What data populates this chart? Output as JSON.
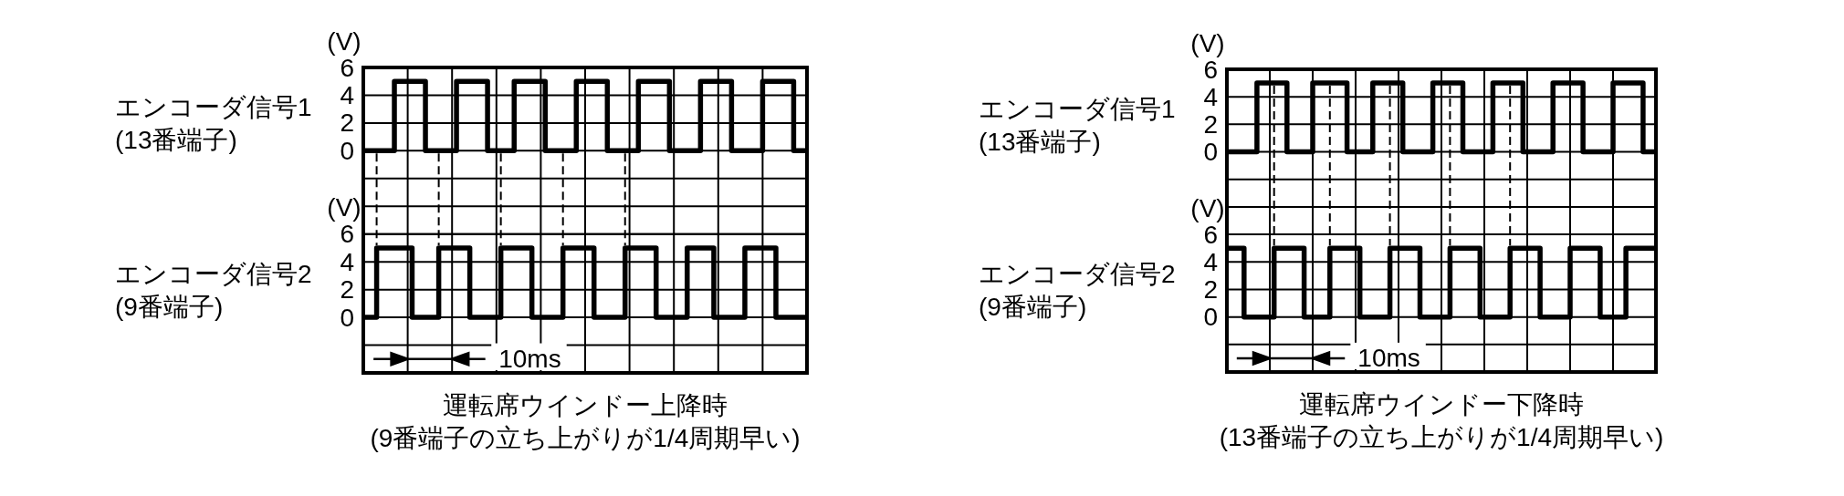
{
  "chart_data": [
    {
      "type": "step",
      "categories": [
        null,
        null,
        null,
        null,
        null,
        null,
        null,
        null,
        null,
        null,
        null,
        null,
        null,
        null,
        null,
        null,
        null,
        null,
        null,
        null,
        null,
        null,
        null,
        null,
        null,
        null,
        null,
        null,
        null,
        null,
        null,
        null,
        null,
        null,
        null,
        null,
        null,
        null,
        null,
        null,
        null,
        null,
        null,
        null,
        null,
        null,
        null,
        null,
        null,
        null,
        null,
        null,
        null,
        null,
        null,
        null,
        null,
        null,
        null,
        null,
        null,
        null,
        null,
        null,
        null,
        null,
        null,
        null,
        null,
        null,
        null,
        null,
        null,
        null,
        null,
        null,
        null,
        null,
        null,
        null,
        null,
        null,
        null,
        null,
        null,
        null,
        null,
        null,
        null,
        null,
        null,
        null,
        null,
        null,
        null,
        null,
        null,
        null,
        null,
        null,
        null
      ],
      "series": [
        {
          "name": "エンコーダ信号1\n(13番端子)",
          "color": "#000000",
          "values": [
            0,
            0,
            0,
            0,
            0,
            0,
            0,
            5,
            5,
            5,
            5,
            5,
            5,
            5,
            0,
            0,
            0,
            0,
            0,
            0,
            0,
            5,
            5,
            5,
            5,
            5,
            5,
            5,
            0,
            0,
            0,
            0,
            0,
            0,
            5,
            5,
            5,
            5,
            5,
            5,
            5,
            0,
            0,
            0,
            0,
            0,
            0,
            0,
            5,
            5,
            5,
            5,
            5,
            5,
            5,
            0,
            0,
            0,
            0,
            0,
            0,
            0,
            5,
            5,
            5,
            5,
            5,
            5,
            5,
            0,
            0,
            0,
            0,
            0,
            0,
            0,
            5,
            5,
            5,
            5,
            5,
            5,
            5,
            0,
            0,
            0,
            0,
            0,
            0,
            0,
            5,
            5,
            5,
            5,
            5,
            5,
            5,
            0,
            0,
            0,
            0
          ]
        }
      ],
      "ylabel": "(V)",
      "ylim": [
        -6,
        6
      ],
      "yticks": [
        0,
        2,
        4,
        6
      ],
      "grid": true,
      "line_style": "solid"
    },
    {
      "type": "step",
      "title": "運転席ウインドー上降時",
      "subtitle": "(9番端子の立ち上がりが1/4周期早い)",
      "categories": [
        null,
        null,
        null,
        null,
        null,
        null,
        null,
        null,
        null,
        null,
        null,
        null,
        null,
        null,
        null,
        null,
        null,
        null,
        null,
        null,
        null,
        null,
        null,
        null,
        null,
        null,
        null,
        null,
        null,
        null,
        null,
        null,
        null,
        null,
        null,
        null,
        null,
        null,
        null,
        null,
        null,
        null,
        null,
        null,
        null,
        null,
        null,
        null,
        null,
        null,
        null,
        null,
        null,
        null,
        null,
        null,
        null,
        null,
        null,
        null,
        null,
        null,
        null,
        null,
        null,
        null,
        null,
        null,
        null,
        null,
        null,
        null,
        null,
        null,
        null,
        null,
        null,
        null,
        null,
        null,
        null,
        null,
        null,
        null,
        null,
        null,
        null,
        null,
        null,
        null,
        null,
        null,
        null,
        null,
        null,
        null,
        null,
        null,
        null,
        null,
        null
      ],
      "series": [
        {
          "name": "エンコーダ信号2\n(9番端子)",
          "color": "#000000",
          "values": [
            0,
            0,
            0,
            5,
            5,
            5,
            5,
            5,
            5,
            5,
            5,
            0,
            0,
            0,
            0,
            0,
            0,
            5,
            5,
            5,
            5,
            5,
            5,
            5,
            0,
            0,
            0,
            0,
            0,
            0,
            0,
            5,
            5,
            5,
            5,
            5,
            5,
            5,
            0,
            0,
            0,
            0,
            0,
            0,
            0,
            5,
            5,
            5,
            5,
            5,
            5,
            5,
            0,
            0,
            0,
            0,
            0,
            0,
            0,
            5,
            5,
            5,
            5,
            5,
            5,
            5,
            0,
            0,
            0,
            0,
            0,
            0,
            0,
            5,
            5,
            5,
            5,
            5,
            5,
            0,
            0,
            0,
            0,
            0,
            0,
            0,
            5,
            5,
            5,
            5,
            5,
            5,
            5,
            0,
            0,
            0,
            0,
            0,
            0,
            0,
            0
          ]
        }
      ],
      "ylabel": "(V)",
      "ylim": [
        -4,
        6
      ],
      "yticks": [
        0,
        2,
        4,
        6
      ],
      "grid": true,
      "line_style": "solid",
      "annotations": [
        "10ms"
      ]
    },
    {
      "type": "step",
      "categories": [
        null,
        null,
        null,
        null,
        null,
        null,
        null,
        null,
        null,
        null,
        null,
        null,
        null,
        null,
        null,
        null,
        null,
        null,
        null,
        null,
        null,
        null,
        null,
        null,
        null,
        null,
        null,
        null,
        null,
        null,
        null,
        null,
        null,
        null,
        null,
        null,
        null,
        null,
        null,
        null,
        null,
        null,
        null,
        null,
        null,
        null,
        null,
        null,
        null,
        null,
        null,
        null,
        null,
        null,
        null,
        null,
        null,
        null,
        null,
        null,
        null,
        null,
        null,
        null,
        null,
        null,
        null,
        null,
        null,
        null,
        null,
        null,
        null,
        null,
        null,
        null,
        null,
        null,
        null,
        null,
        null,
        null,
        null,
        null,
        null,
        null,
        null,
        null,
        null,
        null,
        null,
        null,
        null,
        null,
        null,
        null,
        null,
        null,
        null,
        null,
        null
      ],
      "series": [
        {
          "name": "エンコーダ信号1\n(13番端子)",
          "color": "#000000",
          "values": [
            0,
            0,
            0,
            0,
            0,
            0,
            0,
            5,
            5,
            5,
            5,
            5,
            5,
            5,
            0,
            0,
            0,
            0,
            0,
            0,
            5,
            5,
            5,
            5,
            5,
            5,
            5,
            5,
            0,
            0,
            0,
            0,
            0,
            0,
            5,
            5,
            5,
            5,
            5,
            5,
            5,
            0,
            0,
            0,
            0,
            0,
            0,
            0,
            5,
            5,
            5,
            5,
            5,
            5,
            5,
            0,
            0,
            0,
            0,
            0,
            0,
            0,
            5,
            5,
            5,
            5,
            5,
            5,
            5,
            0,
            0,
            0,
            0,
            0,
            0,
            0,
            5,
            5,
            5,
            5,
            5,
            5,
            5,
            0,
            0,
            0,
            0,
            0,
            0,
            0,
            5,
            5,
            5,
            5,
            5,
            5,
            5,
            0,
            0,
            0,
            0
          ]
        }
      ],
      "ylabel": "(V)",
      "ylim": [
        -6,
        6
      ],
      "yticks": [
        0,
        2,
        4,
        6
      ],
      "grid": true,
      "line_style": "solid"
    },
    {
      "type": "step",
      "title": "運転席ウインドー下降時",
      "subtitle": "(13番端子の立ち上がりが1/4周期早い)",
      "categories": [
        null,
        null,
        null,
        null,
        null,
        null,
        null,
        null,
        null,
        null,
        null,
        null,
        null,
        null,
        null,
        null,
        null,
        null,
        null,
        null,
        null,
        null,
        null,
        null,
        null,
        null,
        null,
        null,
        null,
        null,
        null,
        null,
        null,
        null,
        null,
        null,
        null,
        null,
        null,
        null,
        null,
        null,
        null,
        null,
        null,
        null,
        null,
        null,
        null,
        null,
        null,
        null,
        null,
        null,
        null,
        null,
        null,
        null,
        null,
        null,
        null,
        null,
        null,
        null,
        null,
        null,
        null,
        null,
        null,
        null,
        null,
        null,
        null,
        null,
        null,
        null,
        null,
        null,
        null,
        null,
        null,
        null,
        null,
        null,
        null,
        null,
        null,
        null,
        null,
        null,
        null,
        null,
        null,
        null,
        null,
        null,
        null,
        null,
        null,
        null,
        null
      ],
      "series": [
        {
          "name": "エンコーダ信号2\n(9番端子)",
          "color": "#000000",
          "values": [
            5,
            5,
            5,
            5,
            0,
            0,
            0,
            0,
            0,
            0,
            0,
            5,
            5,
            5,
            5,
            5,
            5,
            5,
            0,
            0,
            0,
            0,
            0,
            0,
            5,
            5,
            5,
            5,
            5,
            5,
            5,
            0,
            0,
            0,
            0,
            0,
            0,
            0,
            5,
            5,
            5,
            5,
            5,
            5,
            5,
            0,
            0,
            0,
            0,
            0,
            0,
            0,
            5,
            5,
            5,
            5,
            5,
            5,
            5,
            0,
            0,
            0,
            0,
            0,
            0,
            0,
            5,
            5,
            5,
            5,
            5,
            5,
            5,
            0,
            0,
            0,
            0,
            0,
            0,
            0,
            5,
            5,
            5,
            5,
            5,
            5,
            5,
            0,
            0,
            0,
            0,
            0,
            0,
            5,
            5,
            5,
            5,
            5,
            5,
            5,
            5
          ]
        }
      ],
      "ylabel": "(V)",
      "ylim": [
        -4,
        6
      ],
      "yticks": [
        0,
        2,
        4,
        6
      ],
      "grid": true,
      "line_style": "solid",
      "annotations": [
        "10ms"
      ]
    }
  ]
}
